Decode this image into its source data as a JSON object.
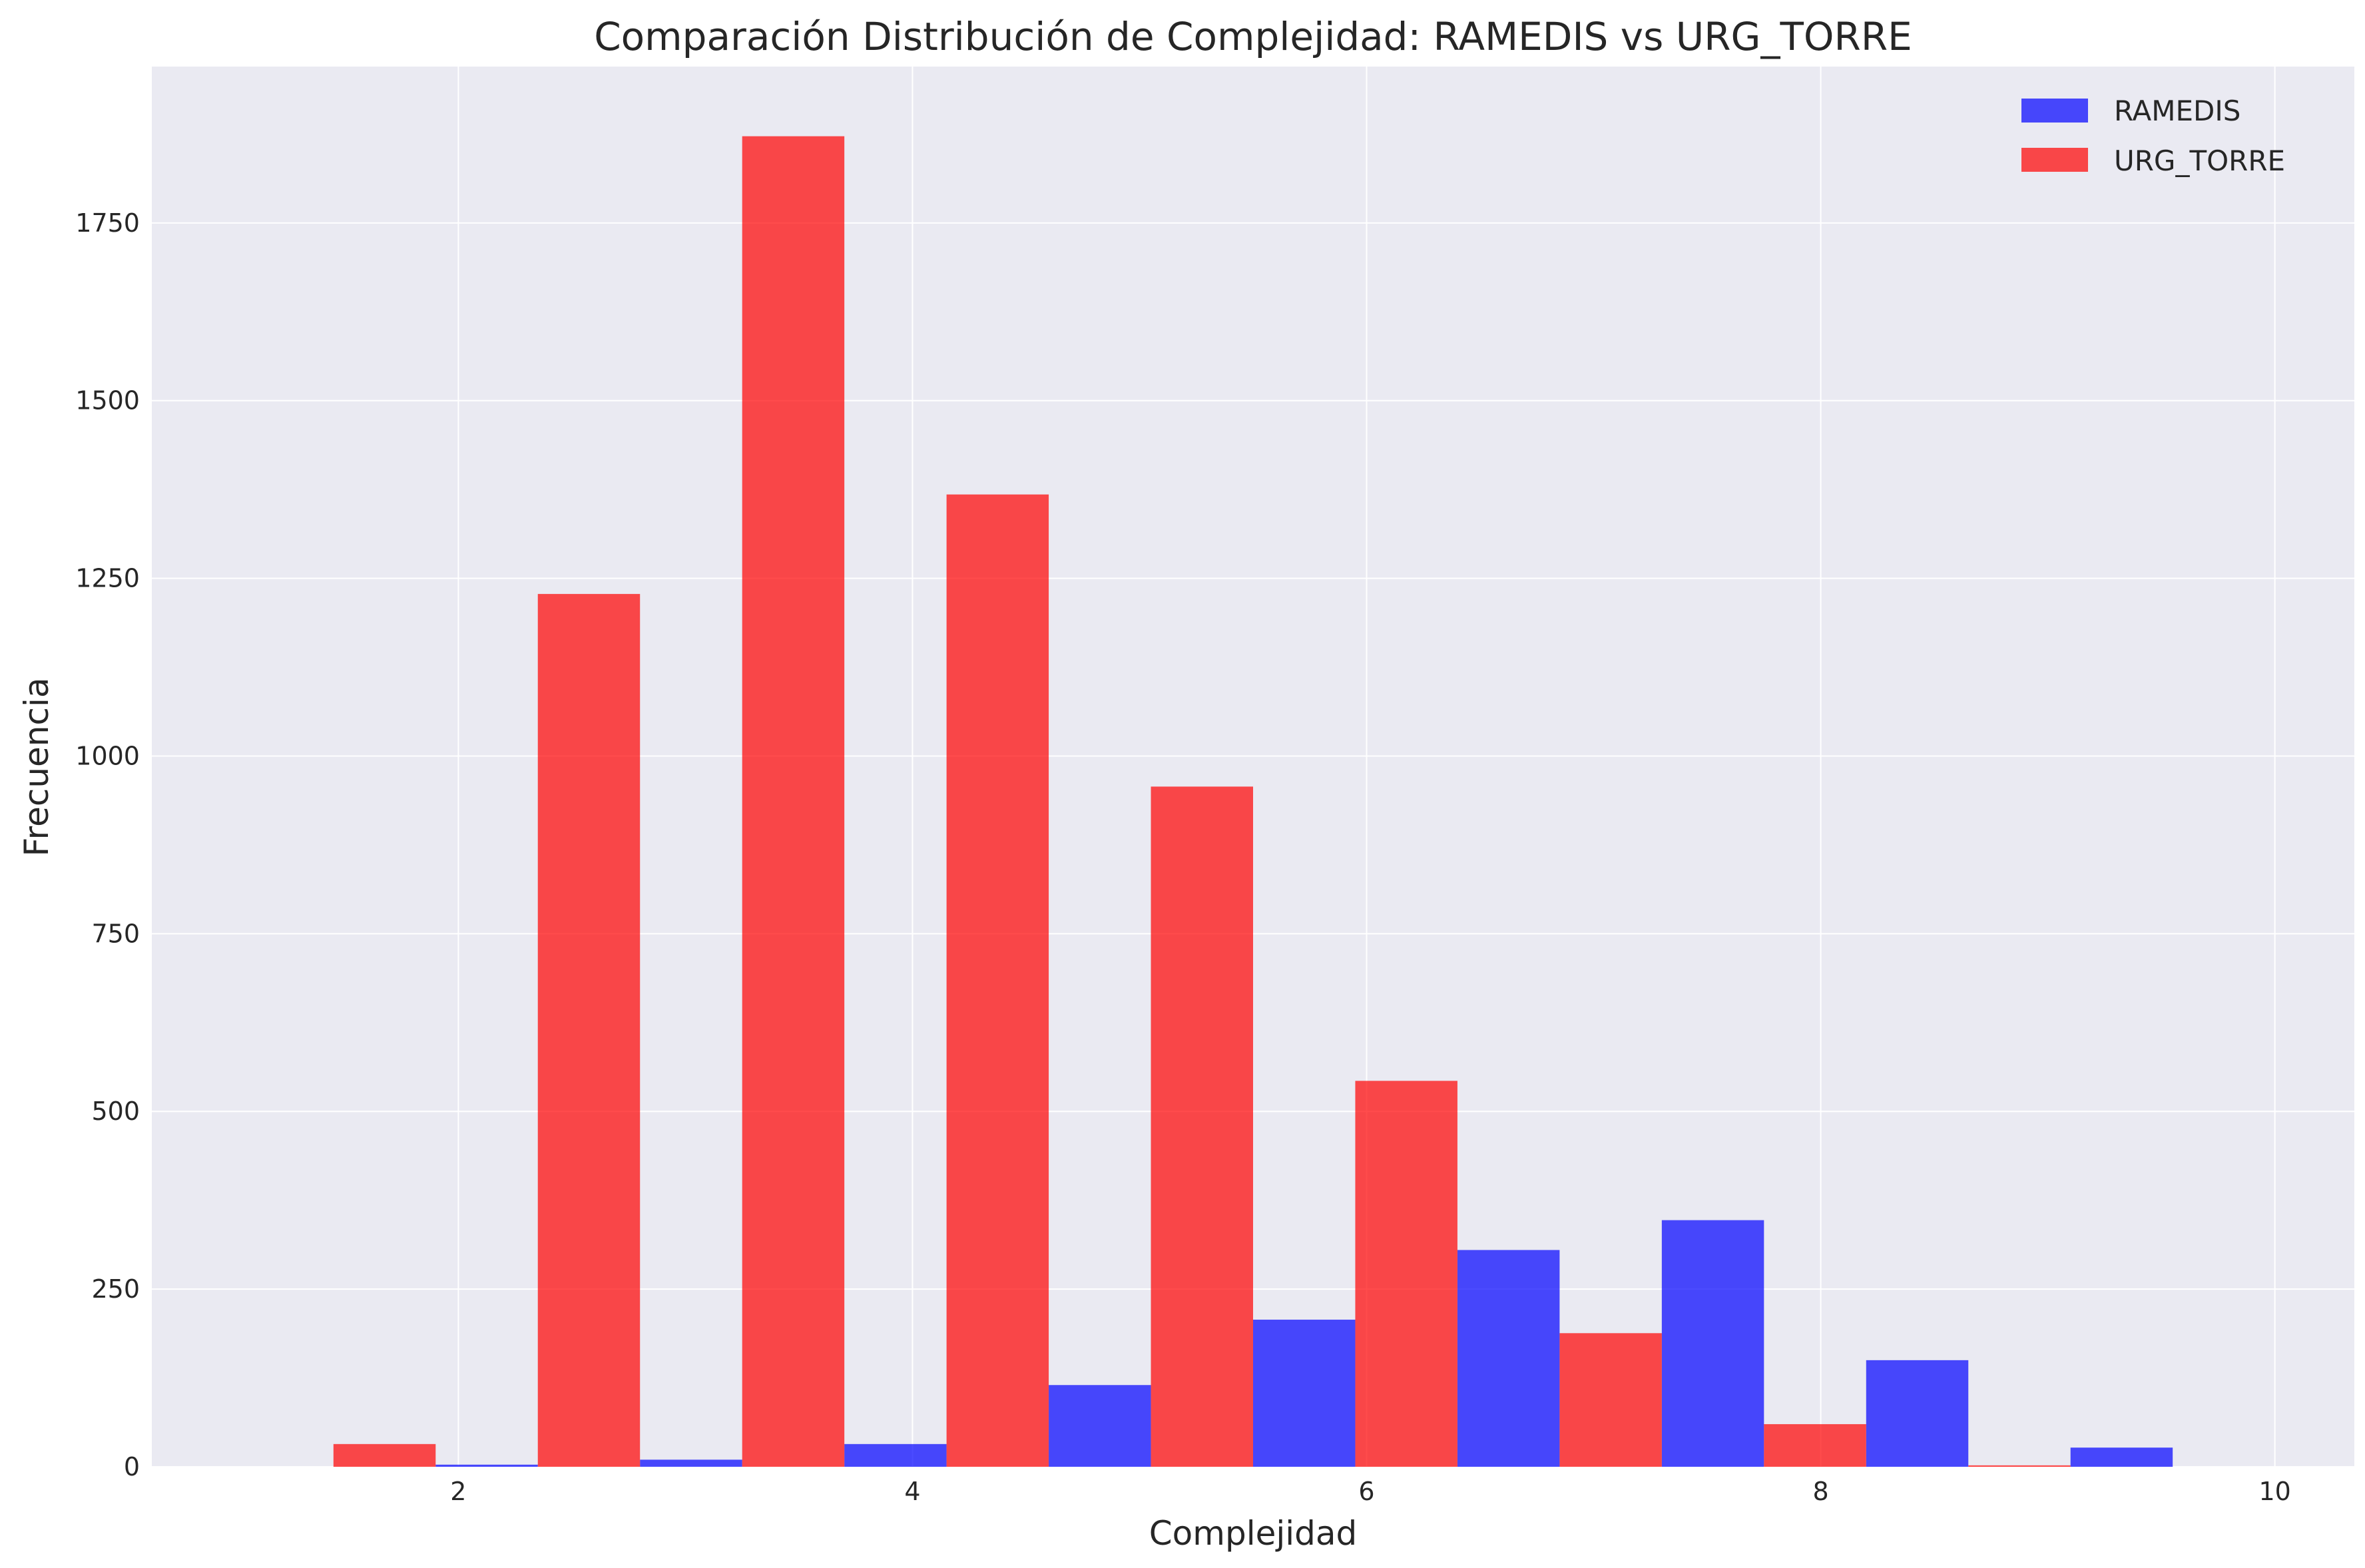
{
  "chart_data": {
    "type": "bar",
    "title": "Comparación Distribución de Complejidad: RAMEDIS vs URG_TORRE",
    "xlabel": "Complejidad",
    "ylabel": "Frecuencia",
    "xlim": [
      0.65,
      10.35
    ],
    "ylim": [
      0,
      1970
    ],
    "xticks": [
      2,
      4,
      6,
      8,
      10
    ],
    "yticks": [
      0,
      250,
      500,
      750,
      1000,
      1250,
      1500,
      1750
    ],
    "bin_edges": [
      1,
      1.9,
      2.8,
      3.7,
      4.6,
      5.5,
      6.4,
      7.3,
      8.2,
      9.1,
      10
    ],
    "grid": true,
    "legend_position": "top-right",
    "series": [
      {
        "name": "RAMEDIS",
        "color": "#0000ff",
        "values": [
          0,
          3,
          10,
          32,
          115,
          207,
          305,
          347,
          150,
          27
        ]
      },
      {
        "name": "URG_TORRE",
        "color": "#ff0000",
        "values": [
          32,
          1228,
          1872,
          1368,
          957,
          543,
          188,
          60,
          2,
          0
        ]
      }
    ]
  }
}
